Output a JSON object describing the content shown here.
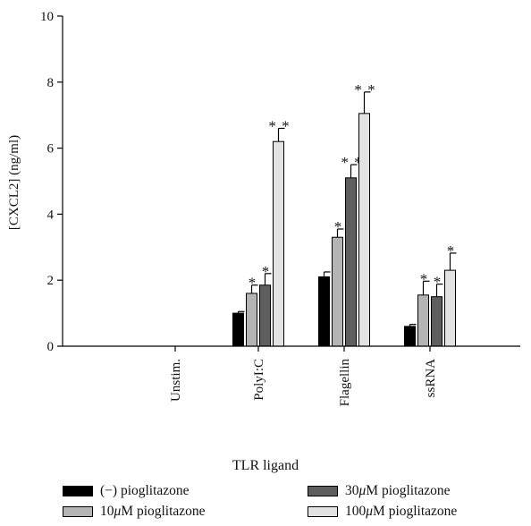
{
  "chart_data": {
    "type": "bar",
    "ylabel": "[CXCL2] (ng/ml)",
    "xlabel": "TLR ligand",
    "ylim": [
      0,
      10
    ],
    "yticks": [
      0,
      2,
      4,
      6,
      8,
      10
    ],
    "categories": [
      "Unstim.",
      "PolyI:C",
      "Flagellin",
      "ssRNA"
    ],
    "series": [
      {
        "name": "(−) pioglitazone",
        "color": "#000000",
        "values": [
          0,
          1.0,
          2.1,
          0.6
        ],
        "errors": [
          0,
          0.05,
          0.15,
          0.06
        ],
        "sig": [
          "",
          "",
          "",
          ""
        ]
      },
      {
        "name": "10 μM pioglitazone",
        "color": "#b4b4b4",
        "values": [
          0,
          1.6,
          3.3,
          1.55
        ],
        "errors": [
          0,
          0.25,
          0.25,
          0.42
        ],
        "sig": [
          "",
          "*",
          "*",
          "*"
        ]
      },
      {
        "name": "30 μM pioglitazone",
        "color": "#5e5e5e",
        "values": [
          0,
          1.85,
          5.1,
          1.5
        ],
        "errors": [
          0,
          0.35,
          0.4,
          0.38
        ],
        "sig": [
          "",
          "*",
          "**",
          "*"
        ]
      },
      {
        "name": "100 μM pioglitazone",
        "color": "#e2e2e2",
        "values": [
          0,
          6.2,
          7.05,
          2.3
        ],
        "errors": [
          0,
          0.4,
          0.65,
          0.52
        ],
        "sig": [
          "",
          "**",
          "**",
          "*"
        ]
      }
    ],
    "legend_position": "bottom"
  },
  "legend": {
    "items": [
      {
        "prefix": "(−) pioglitazone",
        "mu": "",
        "suffix": "",
        "color": "#000000"
      },
      {
        "prefix": "30 ",
        "mu": "μ",
        "suffix": "M pioglitazone",
        "color": "#5e5e5e"
      },
      {
        "prefix": "10 ",
        "mu": "μ",
        "suffix": "M pioglitazone",
        "color": "#b4b4b4"
      },
      {
        "prefix": "100 ",
        "mu": "μ",
        "suffix": "M pioglitazone",
        "color": "#e2e2e2"
      }
    ]
  }
}
